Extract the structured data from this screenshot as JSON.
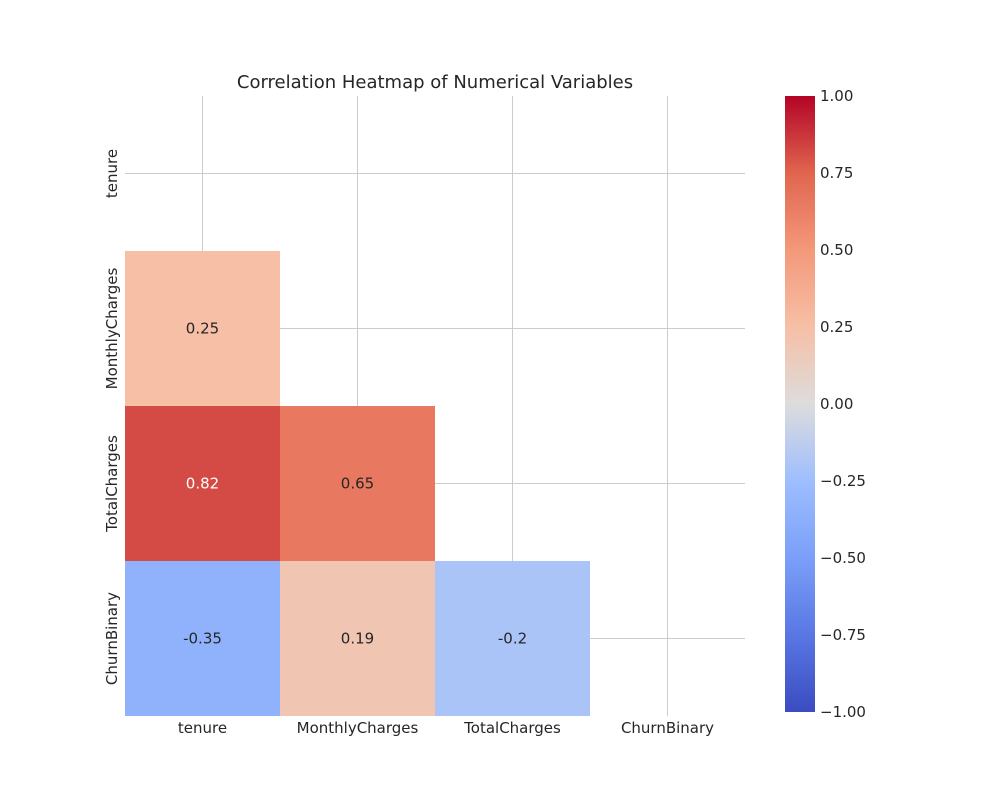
{
  "chart_data": {
    "type": "heatmap",
    "title": "Correlation Heatmap of Numerical Variables",
    "xlabel": "",
    "ylabel": "",
    "rows": [
      "tenure",
      "MonthlyCharges",
      "TotalCharges",
      "ChurnBinary"
    ],
    "columns": [
      "tenure",
      "MonthlyCharges",
      "TotalCharges",
      "ChurnBinary"
    ],
    "mask": "upper-triangle-including-diagonal",
    "cells": [
      {
        "row": "MonthlyCharges",
        "col": "tenure",
        "value": 0.25,
        "label": "0.25"
      },
      {
        "row": "TotalCharges",
        "col": "tenure",
        "value": 0.82,
        "label": "0.82"
      },
      {
        "row": "TotalCharges",
        "col": "MonthlyCharges",
        "value": 0.65,
        "label": "0.65"
      },
      {
        "row": "ChurnBinary",
        "col": "tenure",
        "value": -0.35,
        "label": "-0.35"
      },
      {
        "row": "ChurnBinary",
        "col": "MonthlyCharges",
        "value": 0.19,
        "label": "0.19"
      },
      {
        "row": "ChurnBinary",
        "col": "TotalCharges",
        "value": -0.2,
        "label": "-0.2"
      }
    ],
    "colorbar": {
      "colormap": "coolwarm",
      "vmin": -1.0,
      "vmax": 1.0,
      "ticks": [
        1.0,
        0.75,
        0.5,
        0.25,
        0.0,
        -0.25,
        -0.5,
        -0.75,
        -1.0
      ],
      "tick_labels": [
        "1.00",
        "0.75",
        "0.50",
        "0.25",
        "0.00",
        "−0.25",
        "−0.50",
        "−0.75",
        "−1.00"
      ]
    },
    "grid": true
  }
}
